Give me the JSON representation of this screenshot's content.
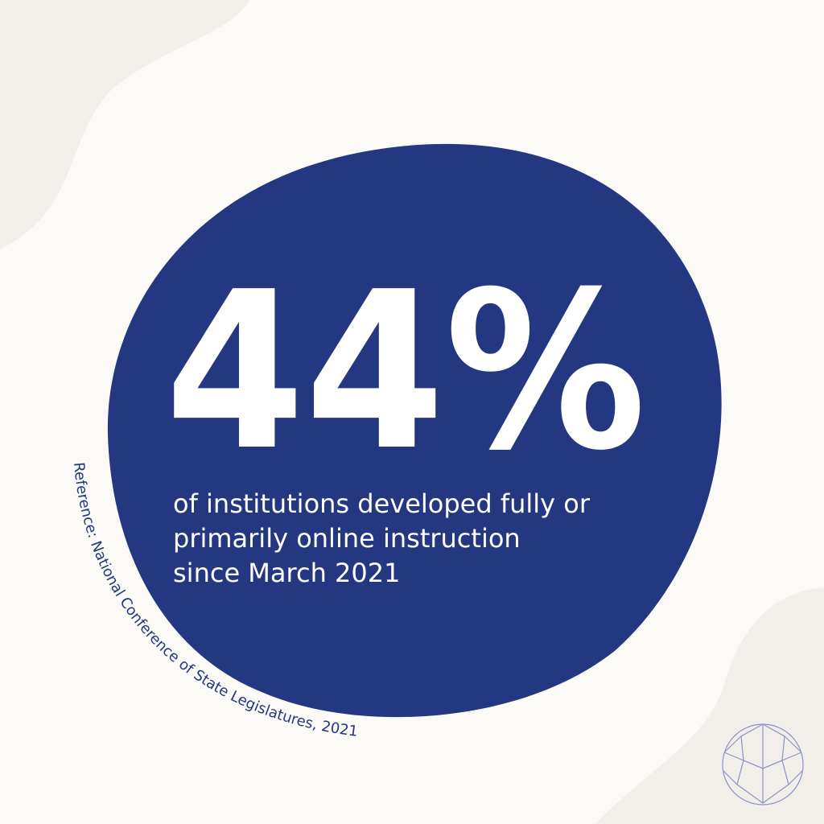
{
  "stat": "44%",
  "description": [
    "of institutions developed fully or",
    "primarily online instruction",
    "since March 2021"
  ],
  "reference": "Reference:  National Conference of State Legislatures, 2021"
}
